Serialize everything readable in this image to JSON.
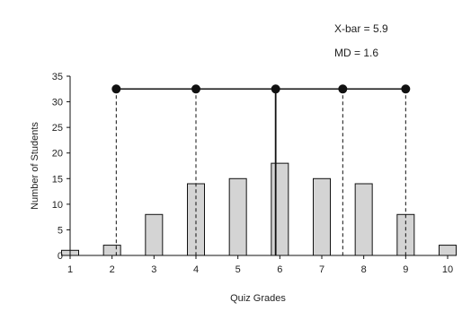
{
  "chart_data": {
    "type": "bar",
    "categories": [
      "1",
      "2",
      "3",
      "4",
      "5",
      "6",
      "7",
      "8",
      "9",
      "10"
    ],
    "values": [
      1,
      2,
      8,
      14,
      15,
      18,
      15,
      14,
      8,
      2
    ],
    "xlabel": "Quiz Grades",
    "ylabel": "Number of Students",
    "ylim": [
      0,
      35
    ],
    "yticks": [
      0,
      5,
      10,
      15,
      20,
      25,
      30,
      35
    ],
    "annotations": {
      "mean_label": "X-bar = 5.9",
      "md_label": "MD = 1.6"
    },
    "mean": 5.9,
    "deviation_markers": [
      2.1,
      4.0,
      5.9,
      7.5,
      9.0
    ],
    "marker_line_y": 32.5,
    "bar_color": "#d4d4d4",
    "stroke_color": "#111111"
  }
}
